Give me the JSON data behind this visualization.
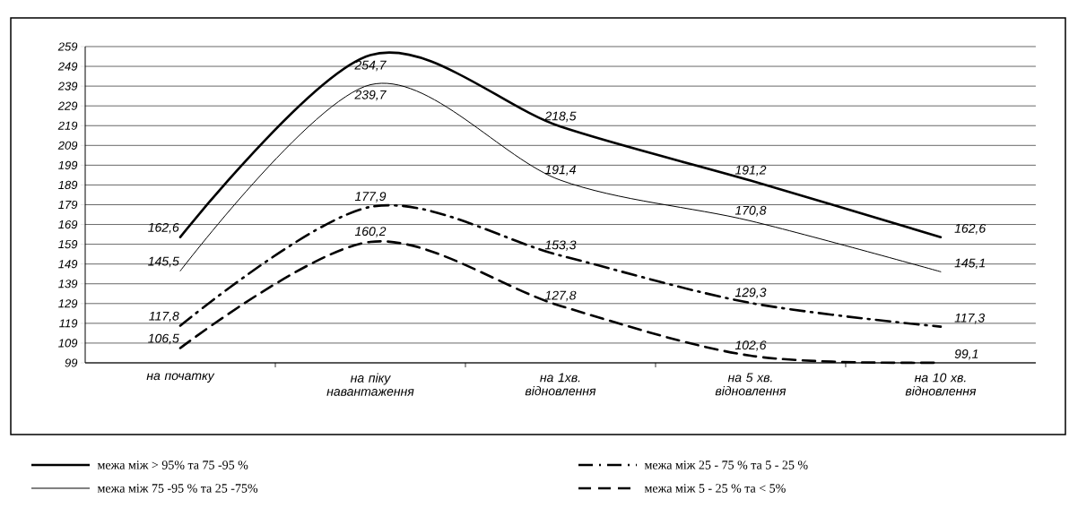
{
  "chart_data": {
    "type": "line",
    "categories": [
      "на початку",
      "на піку навантаження",
      "на 1хв. відновлення",
      "на 5 хв. відновлення",
      "на 10 хв. відновлення"
    ],
    "ylim": [
      99,
      259
    ],
    "yticks": [
      99,
      109,
      119,
      129,
      139,
      149,
      159,
      169,
      179,
      189,
      199,
      209,
      219,
      229,
      239,
      249,
      259
    ],
    "grid": "y",
    "legend": "bottom",
    "series": [
      {
        "name": "межа між > 95% та 75 -95 %",
        "color": "#000000",
        "line_style": "solid",
        "values": [
          162.6,
          254.7,
          218.5,
          191.2,
          162.6
        ],
        "value_labels": [
          "162,6",
          "254,7",
          "218,5",
          "191,2",
          "162,6"
        ]
      },
      {
        "name": "межа між 75 -95 % та 25 -75%",
        "color": "#000000",
        "line_style": "solid",
        "values": [
          145.5,
          239.7,
          191.4,
          170.8,
          145.1
        ],
        "value_labels": [
          "145,5",
          "239,7",
          "191,4",
          "170,8",
          "145,1"
        ]
      },
      {
        "name": "межа між 25 - 75 % та 5 - 25 %",
        "color": "#000000",
        "line_style": "dashdot",
        "values": [
          117.8,
          177.9,
          153.3,
          129.3,
          117.3
        ],
        "value_labels": [
          "117,8",
          "177,9",
          "153,3",
          "129,3",
          "117,3"
        ]
      },
      {
        "name": "межа між 5 - 25 % та < 5%",
        "color": "#000000",
        "line_style": "dashed",
        "values": [
          106.5,
          160.2,
          127.8,
          102.6,
          99.1
        ],
        "value_labels": [
          "106,5",
          "160,2",
          "127,8",
          "102,6",
          "99,1"
        ]
      }
    ]
  }
}
